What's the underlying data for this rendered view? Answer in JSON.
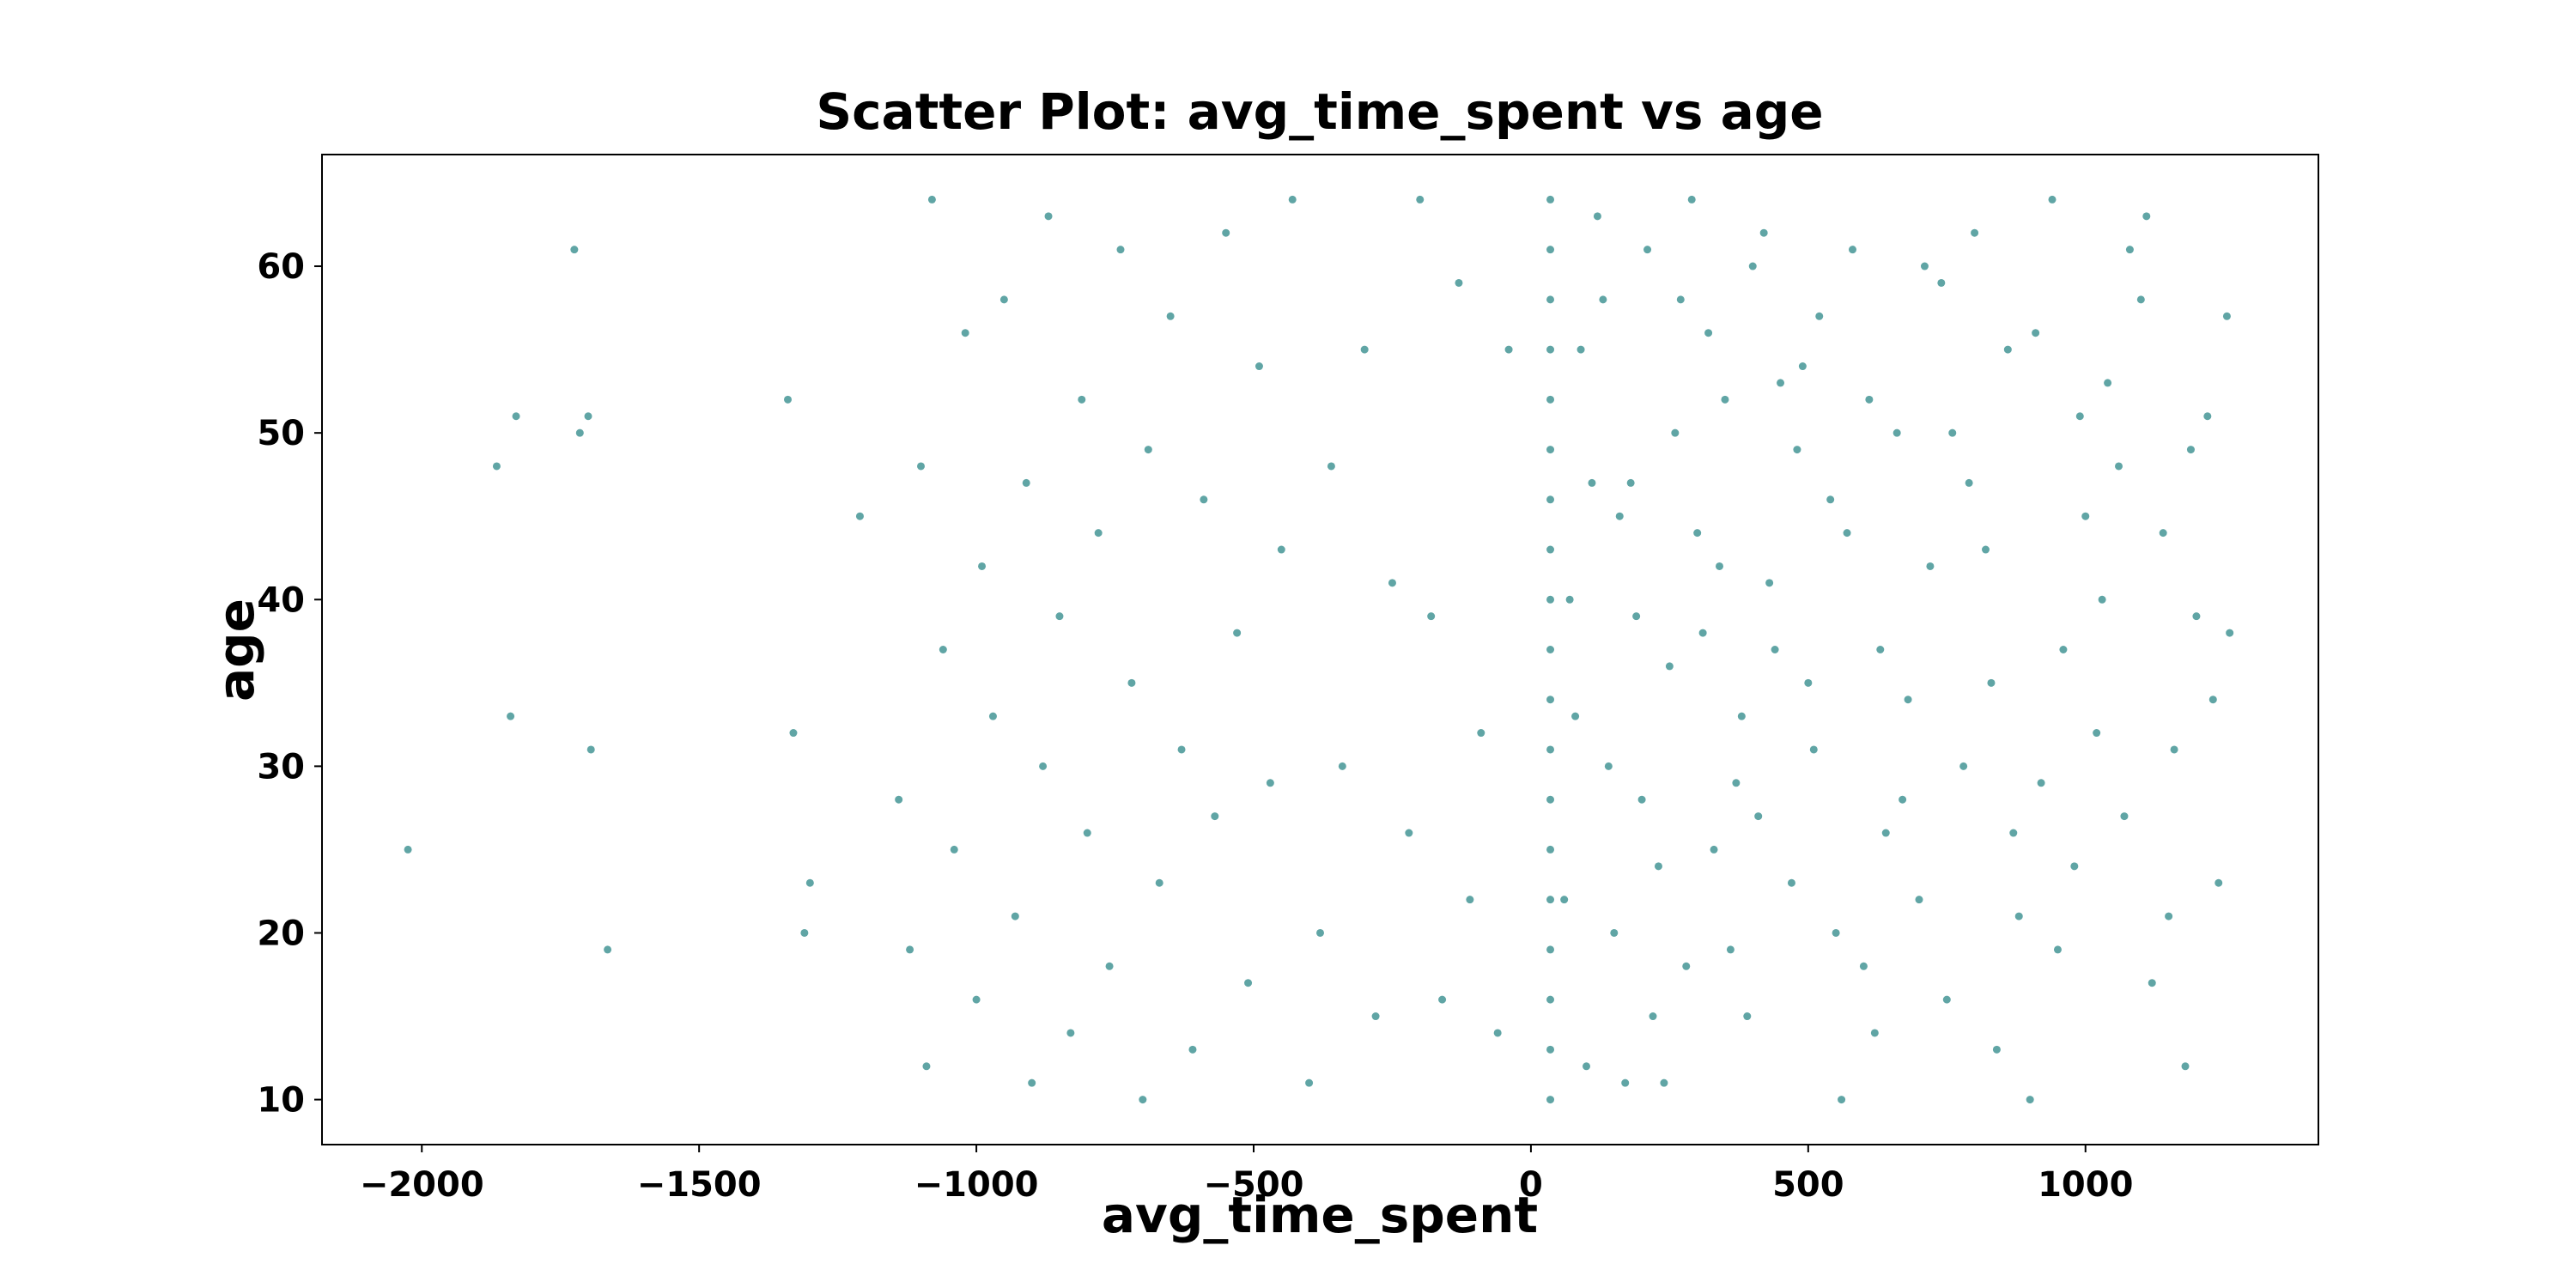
{
  "chart_data": {
    "type": "scatter",
    "title": "Scatter Plot: avg_time_spent vs age",
    "x_label": "avg_time_spent",
    "y_label": "age",
    "color": "#1d7f7f",
    "xlim": [
      -2180,
      1420
    ],
    "ylim": [
      7.3,
      66.7
    ],
    "xticks": [
      {
        "value": -2000,
        "label": "−2000"
      },
      {
        "value": -1500,
        "label": "−1500"
      },
      {
        "value": -1000,
        "label": "−1000"
      },
      {
        "value": -500,
        "label": "−500"
      },
      0,
      500,
      1000
    ],
    "yticks": [
      10,
      20,
      30,
      40,
      50,
      60
    ],
    "x": [
      -2025,
      -1840,
      -1830,
      -1865,
      -1725,
      -1715,
      -1700,
      -1695,
      -1665,
      -1340,
      -1330,
      -1300,
      -1310,
      -1210,
      -1140,
      -1120,
      -1100,
      -1090,
      -1080,
      -1060,
      -1040,
      -1020,
      -1000,
      -990,
      -970,
      -950,
      -930,
      -910,
      -900,
      -880,
      -870,
      -850,
      -830,
      -810,
      -800,
      -780,
      -760,
      -740,
      -720,
      -700,
      -690,
      -670,
      -650,
      -630,
      -610,
      -590,
      -570,
      -550,
      -530,
      -510,
      -490,
      -470,
      -450,
      -430,
      -400,
      -380,
      -360,
      -340,
      -300,
      -280,
      -250,
      -220,
      -200,
      -180,
      -160,
      -130,
      -110,
      -90,
      -60,
      -40,
      35,
      35,
      35,
      35,
      35,
      35,
      35,
      35,
      35,
      35,
      35,
      35,
      35,
      35,
      35,
      35,
      35,
      35,
      35,
      100,
      150,
      200,
      250,
      300,
      350,
      400,
      120,
      180,
      220,
      270,
      330,
      380,
      430,
      480,
      520,
      560,
      600,
      640,
      680,
      720,
      760,
      800,
      840,
      880,
      920,
      960,
      1000,
      1040,
      1080,
      1120,
      1160,
      1200,
      1240,
      1255,
      70,
      90,
      140,
      160,
      240,
      290,
      310,
      360,
      410,
      450,
      500,
      540,
      580,
      620,
      660,
      700,
      740,
      780,
      820,
      860,
      900,
      940,
      980,
      1020,
      1060,
      1100,
      1140,
      1180,
      1220,
      1260,
      60,
      80,
      110,
      130,
      170,
      190,
      210,
      230,
      260,
      280,
      320,
      340,
      370,
      390,
      420,
      440,
      470,
      490,
      510,
      550,
      570,
      610,
      630,
      670,
      710,
      750,
      790,
      830,
      870,
      910,
      950,
      990,
      1030,
      1070,
      1110,
      1150,
      1190,
      1230
    ],
    "y": [
      25,
      33,
      51,
      48,
      61,
      50,
      51,
      31,
      19,
      52,
      32,
      23,
      20,
      45,
      28,
      19,
      48,
      12,
      64,
      37,
      25,
      56,
      16,
      42,
      33,
      58,
      21,
      47,
      11,
      30,
      63,
      39,
      14,
      52,
      26,
      44,
      18,
      61,
      35,
      10,
      49,
      23,
      57,
      31,
      13,
      46,
      27,
      62,
      38,
      17,
      54,
      29,
      43,
      64,
      11,
      20,
      48,
      30,
      55,
      15,
      41,
      26,
      64,
      39,
      16,
      59,
      22,
      32,
      14,
      55,
      10,
      13,
      16,
      19,
      22,
      25,
      28,
      31,
      34,
      37,
      40,
      43,
      46,
      49,
      52,
      55,
      58,
      61,
      64,
      12,
      20,
      28,
      36,
      44,
      52,
      60,
      63,
      47,
      15,
      58,
      25,
      33,
      41,
      49,
      57,
      10,
      18,
      26,
      34,
      42,
      50,
      62,
      13,
      21,
      29,
      37,
      45,
      53,
      61,
      17,
      31,
      39,
      23,
      57,
      40,
      55,
      30,
      45,
      11,
      64,
      38,
      19,
      27,
      53,
      35,
      46,
      61,
      14,
      50,
      22,
      59,
      30,
      43,
      55,
      10,
      64,
      24,
      32,
      48,
      58,
      44,
      12,
      51,
      38,
      22,
      33,
      47,
      58,
      11,
      39,
      61,
      24,
      50,
      18,
      56,
      42,
      29,
      15,
      62,
      37,
      23,
      54,
      31,
      20,
      44,
      52,
      37,
      28,
      60,
      16,
      47,
      35,
      26,
      56,
      19,
      51,
      40,
      27,
      63,
      21,
      49,
      34
    ]
  }
}
